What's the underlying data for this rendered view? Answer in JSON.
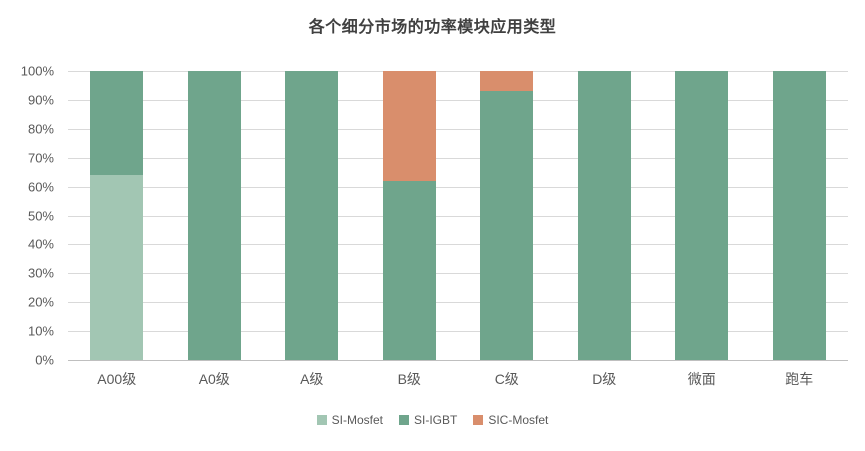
{
  "chart_data": {
    "type": "bar",
    "stacked": true,
    "percent": true,
    "title": "各个细分市场的功率模块应用类型",
    "categories": [
      "A00级",
      "A0级",
      "A级",
      "B级",
      "C级",
      "D级",
      "微面",
      "跑车"
    ],
    "series": [
      {
        "name": "SI-Mosfet",
        "color": "#a2c6b3",
        "values": [
          64,
          0,
          0,
          0,
          0,
          0,
          0,
          0
        ]
      },
      {
        "name": "SI-IGBT",
        "color": "#6fa58c",
        "values": [
          36,
          100,
          100,
          62,
          93,
          100,
          100,
          100
        ]
      },
      {
        "name": "SIC-Mosfet",
        "color": "#d98e6c",
        "values": [
          0,
          0,
          0,
          38,
          7,
          0,
          0,
          0
        ]
      }
    ],
    "y_ticks": [
      "0%",
      "10%",
      "20%",
      "30%",
      "40%",
      "50%",
      "60%",
      "70%",
      "80%",
      "90%",
      "100%"
    ],
    "ylim": [
      0,
      100
    ],
    "grid": true,
    "legend_position": "bottom",
    "gridline_color": "#d9d9d9",
    "axis_label_color": "#595959",
    "title_color": "#404040"
  }
}
